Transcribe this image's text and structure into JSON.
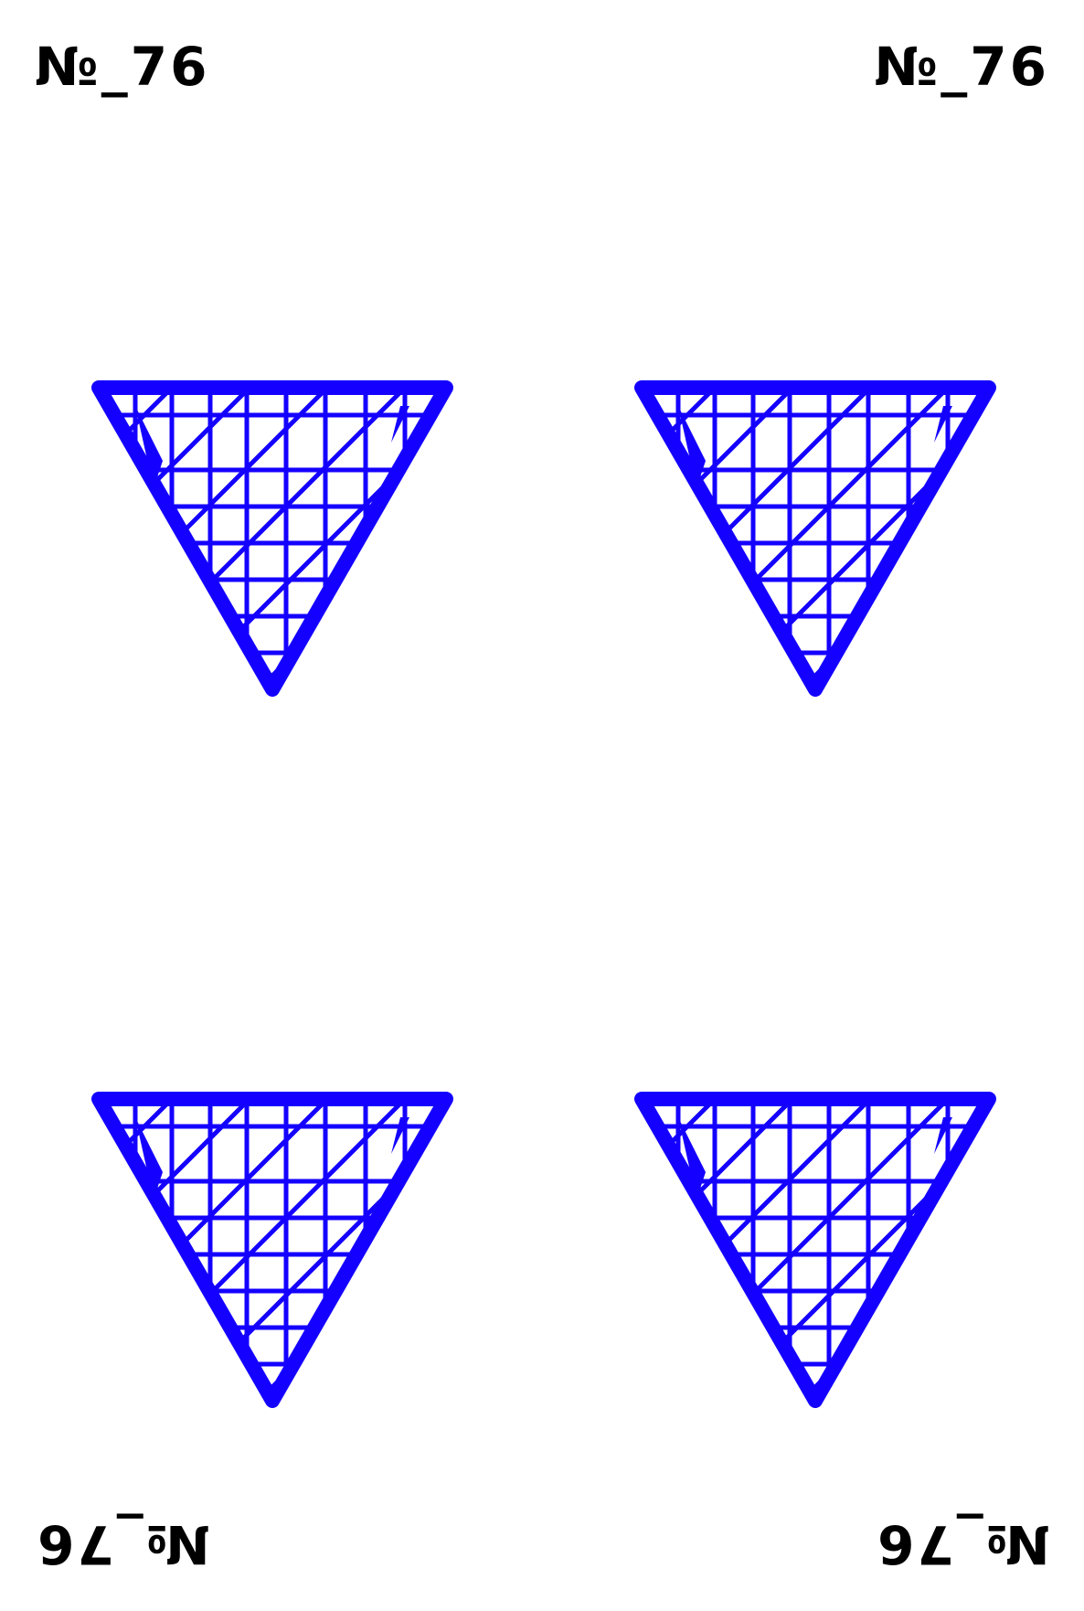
{
  "card": {
    "label": "№_76",
    "pip_color": "#1400ff",
    "pip_count": 4,
    "pip_shape": "downward-triangle-crosshatched"
  }
}
